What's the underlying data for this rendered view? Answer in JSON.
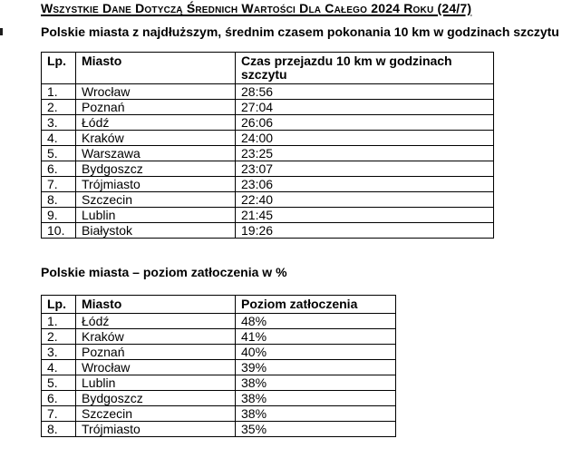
{
  "document": {
    "title": "Wszystkie Dane Dotyczą Średnich Wartości Dla Całego 2024 Roku (24/7)",
    "section1": {
      "heading": "Polskie miasta z najdłuższym, średnim czasem pokonania 10 km w godzinach szczytu",
      "table": {
        "columns": [
          "Lp.",
          "Miasto",
          "Czas przejazdu 10 km w godzinach szczytu"
        ],
        "rows": [
          [
            "1.",
            "Wrocław",
            "28:56"
          ],
          [
            "2.",
            "Poznań",
            "27:04"
          ],
          [
            "3.",
            "Łódź",
            "26:06"
          ],
          [
            "4.",
            "Kraków",
            "24:00"
          ],
          [
            "5.",
            "Warszawa",
            "23:25"
          ],
          [
            "6.",
            "Bydgoszcz",
            "23:07"
          ],
          [
            "7.",
            "Trójmiasto",
            "23:06"
          ],
          [
            "8.",
            "Szczecin",
            "22:40"
          ],
          [
            "9.",
            "Lublin",
            "21:45"
          ],
          [
            "10.",
            "Białystok",
            "19:26"
          ]
        ]
      }
    },
    "section2": {
      "heading": "Polskie miasta – poziom zatłoczenia w %",
      "table": {
        "columns": [
          "Lp.",
          "Miasto",
          "Poziom zatłoczenia"
        ],
        "rows": [
          [
            "1.",
            "Łódź",
            "48%"
          ],
          [
            "2.",
            "Kraków",
            "41%"
          ],
          [
            "3.",
            "Poznań",
            "40%"
          ],
          [
            "4.",
            "Wrocław",
            "39%"
          ],
          [
            "5.",
            "Lublin",
            "38%"
          ],
          [
            "6.",
            "Bydgoszcz",
            "38%"
          ],
          [
            "7.",
            "Szczecin",
            "38%"
          ],
          [
            "8.",
            "Trójmiasto",
            "35%"
          ]
        ]
      }
    },
    "colors": {
      "text": "#000000",
      "background": "#ffffff",
      "table_border": "#000000"
    }
  }
}
